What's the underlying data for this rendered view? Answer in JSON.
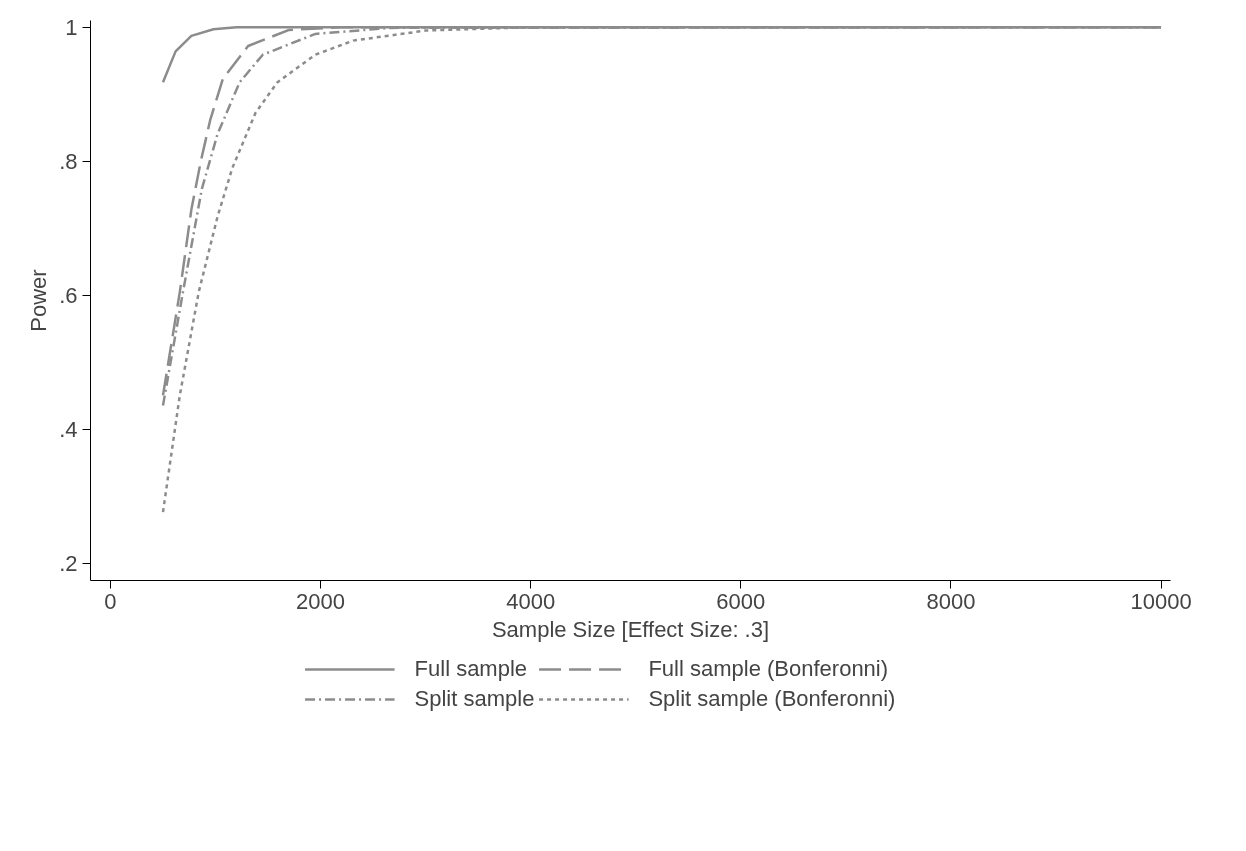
{
  "chart_data": {
    "type": "line",
    "xlabel": "Sample Size [Effect Size: .3]",
    "ylabel": "Power",
    "xlim": [
      -190,
      10090
    ],
    "ylim": [
      0.175,
      1.01
    ],
    "xticks": [
      0,
      2000,
      4000,
      6000,
      8000,
      10000
    ],
    "yticks": [
      {
        "value": 0.2,
        "label": ".2"
      },
      {
        "value": 0.4,
        "label": ".4"
      },
      {
        "value": 0.6,
        "label": ".6"
      },
      {
        "value": 0.8,
        "label": ".8"
      },
      1
    ],
    "grid": false,
    "legend": "bottom",
    "marker": "none",
    "series": [
      {
        "name": "Full sample",
        "color": "#8c8c8c",
        "line_style": "solid",
        "x": [
          500,
          620,
          770,
          980,
          1200,
          2000,
          10000
        ],
        "values": [
          0.918,
          0.964,
          0.987,
          0.997,
          1.0,
          1.0,
          1.0
        ]
      },
      {
        "name": "Full sample (Bonferonni)",
        "color": "#8c8c8c",
        "line_style": "longdash",
        "x": [
          500,
          660,
          770,
          860,
          950,
          1070,
          1310,
          1700,
          2200,
          10000
        ],
        "values": [
          0.451,
          0.605,
          0.728,
          0.8,
          0.862,
          0.923,
          0.972,
          0.996,
          1.0,
          1.0
        ]
      },
      {
        "name": "Split sample",
        "color": "#8c8c8c",
        "line_style": "dashdot",
        "x": [
          500,
          690,
          870,
          1020,
          1230,
          1450,
          1950,
          2670,
          10000
        ],
        "values": [
          0.436,
          0.605,
          0.759,
          0.841,
          0.918,
          0.959,
          0.99,
          0.999,
          1.0
        ]
      },
      {
        "name": "Split sample (Bonferonni)",
        "color": "#8c8c8c",
        "line_style": "dashed",
        "x": [
          500,
          660,
          840,
          1020,
          1160,
          1380,
          1590,
          1950,
          2310,
          3000,
          4000,
          10000
        ],
        "values": [
          0.277,
          0.451,
          0.605,
          0.718,
          0.79,
          0.872,
          0.918,
          0.959,
          0.98,
          0.995,
          1.0,
          1.0
        ]
      }
    ]
  }
}
